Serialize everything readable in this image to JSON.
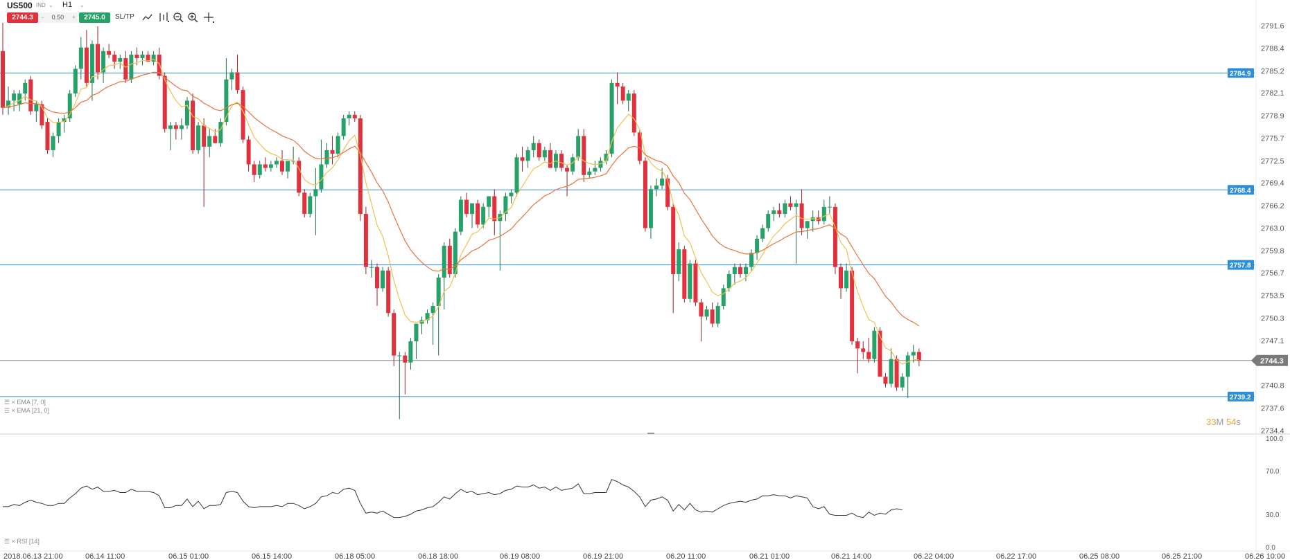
{
  "header": {
    "symbol": "US500",
    "symbol_sub": "IND",
    "timeframe": "H1",
    "sell_price": "2744.3",
    "quantity_prefix": "-",
    "quantity": "0.50",
    "quantity_suffix": "+",
    "buy_price": "2745.0",
    "sltp_label": "SL/TP",
    "tools": [
      "chart-type-icon",
      "indicators-icon",
      "zoom-out-icon",
      "zoom-in-icon",
      "crosshair-icon"
    ]
  },
  "colors": {
    "bull": "#26a269",
    "bear": "#e0313c",
    "ema_fast": "#f2c14e",
    "ema_slow": "#e8733c",
    "level_line": "#2e8fd8",
    "price_line": "#888888",
    "rsi_line": "#333333"
  },
  "indicators": {
    "ema_fast_label": "EMA [7, 0]",
    "ema_slow_label": "EMA [21, 0]",
    "rsi_label": "RSI [14]"
  },
  "timer": {
    "minutes": "33",
    "minutes_unit": "M",
    "seconds": "54",
    "seconds_unit": "s"
  },
  "price_axis": {
    "ticks": [
      "2791.6",
      "2788.4",
      "2785.2",
      "2782.1",
      "2778.9",
      "2775.7",
      "2772.5",
      "2769.4",
      "2766.2",
      "2763.0",
      "2759.8",
      "2756.7",
      "2753.5",
      "2750.3",
      "2747.1",
      "2740.8",
      "2737.6",
      "2734.4"
    ],
    "levels": [
      "2784.9",
      "2768.4",
      "2757.8",
      "2739.2"
    ],
    "current_price": "2744.3"
  },
  "rsi_axis": {
    "ticks": [
      "100.0",
      "70.0",
      "30.0",
      "0.0"
    ]
  },
  "time_axis": {
    "labels": [
      "2018.06.13 21:00",
      "06.14 11:00",
      "06.15 01:00",
      "06.15 14:00",
      "06.18 05:00",
      "06.18 18:00",
      "06.19 08:00",
      "06.19 21:00",
      "06.20 11:00",
      "06.21 01:00",
      "06.21 14:00",
      "06.22 04:00",
      "06.22 17:00",
      "06.25 08:00",
      "06.25 21:00",
      "06.26 10:00"
    ]
  },
  "chart_data": {
    "type": "candlestick",
    "symbol": "US500",
    "timeframe": "H1",
    "ohlc": [
      [
        2788.0,
        2792.0,
        2779.0,
        2780.0
      ],
      [
        2780.0,
        2783.0,
        2779.0,
        2781.0
      ],
      [
        2781.0,
        2782.5,
        2779.5,
        2782.0
      ],
      [
        2780.5,
        2782.5,
        2779.5,
        2782.0
      ],
      [
        2782.0,
        2784.0,
        2781.0,
        2783.5
      ],
      [
        2784.0,
        2784.5,
        2779.0,
        2779.5
      ],
      [
        2779.5,
        2781.0,
        2778.0,
        2780.5
      ],
      [
        2780.5,
        2781.0,
        2777.0,
        2777.5
      ],
      [
        2778.0,
        2778.5,
        2773.5,
        2774.0
      ],
      [
        2774.0,
        2776.5,
        2773.0,
        2776.0
      ],
      [
        2776.0,
        2778.5,
        2775.0,
        2778.0
      ],
      [
        2778.0,
        2779.0,
        2776.5,
        2778.5
      ],
      [
        2778.5,
        2782.5,
        2778.0,
        2782.0
      ],
      [
        2782.0,
        2786.0,
        2781.5,
        2785.5
      ],
      [
        2785.5,
        2790.0,
        2784.0,
        2788.5
      ],
      [
        2788.5,
        2791.0,
        2783.0,
        2783.5
      ],
      [
        2783.5,
        2789.5,
        2781.0,
        2789.0
      ],
      [
        2789.0,
        2791.5,
        2784.0,
        2785.0
      ],
      [
        2785.0,
        2788.5,
        2783.5,
        2788.0
      ],
      [
        2788.0,
        2789.0,
        2787.0,
        2787.5
      ],
      [
        2787.5,
        2788.0,
        2785.5,
        2786.5
      ],
      [
        2786.5,
        2787.5,
        2785.5,
        2787.0
      ],
      [
        2787.0,
        2788.0,
        2783.5,
        2784.0
      ],
      [
        2784.0,
        2788.0,
        2783.5,
        2787.5
      ],
      [
        2787.5,
        2788.5,
        2786.0,
        2787.0
      ],
      [
        2787.0,
        2788.0,
        2786.0,
        2787.5
      ],
      [
        2787.5,
        2788.0,
        2786.5,
        2786.5
      ],
      [
        2786.5,
        2788.0,
        2786.0,
        2787.5
      ],
      [
        2787.5,
        2788.5,
        2784.0,
        2784.5
      ],
      [
        2784.5,
        2785.0,
        2776.5,
        2777.0
      ],
      [
        2777.0,
        2778.0,
        2774.0,
        2777.5
      ],
      [
        2777.5,
        2778.0,
        2775.5,
        2777.0
      ],
      [
        2777.0,
        2778.5,
        2775.5,
        2777.5
      ],
      [
        2777.5,
        2781.5,
        2777.0,
        2781.0
      ],
      [
        2781.0,
        2782.0,
        2773.5,
        2774.0
      ],
      [
        2774.0,
        2778.0,
        2773.5,
        2777.5
      ],
      [
        2777.5,
        2778.5,
        2766.0,
        2774.5
      ],
      [
        2774.5,
        2777.0,
        2773.0,
        2776.0
      ],
      [
        2776.0,
        2777.0,
        2775.0,
        2775.0
      ],
      [
        2775.0,
        2778.5,
        2774.5,
        2778.0
      ],
      [
        2778.0,
        2787.0,
        2777.5,
        2784.0
      ],
      [
        2784.0,
        2785.5,
        2782.5,
        2785.0
      ],
      [
        2785.0,
        2787.5,
        2782.0,
        2782.5
      ],
      [
        2782.5,
        2783.0,
        2775.0,
        2775.5
      ],
      [
        2775.5,
        2776.0,
        2771.0,
        2772.0
      ],
      [
        2772.0,
        2772.5,
        2769.5,
        2770.5
      ],
      [
        2770.5,
        2772.5,
        2770.0,
        2772.0
      ],
      [
        2772.0,
        2773.0,
        2771.0,
        2771.5
      ],
      [
        2771.5,
        2772.5,
        2771.0,
        2772.0
      ],
      [
        2772.0,
        2773.0,
        2771.5,
        2772.5
      ],
      [
        2772.5,
        2774.0,
        2770.5,
        2771.0
      ],
      [
        2771.0,
        2772.5,
        2770.0,
        2772.5
      ],
      [
        2772.5,
        2774.5,
        2772.0,
        2772.5
      ],
      [
        2772.5,
        2773.0,
        2767.5,
        2768.0
      ],
      [
        2768.0,
        2768.5,
        2764.5,
        2765.0
      ],
      [
        2765.0,
        2768.0,
        2764.5,
        2767.5
      ],
      [
        2767.5,
        2771.5,
        2762.0,
        2768.5
      ],
      [
        2768.5,
        2775.5,
        2768.0,
        2772.0
      ],
      [
        2772.0,
        2775.0,
        2771.5,
        2774.0
      ],
      [
        2774.0,
        2776.0,
        2772.0,
        2773.5
      ],
      [
        2773.5,
        2776.5,
        2773.0,
        2776.0
      ],
      [
        2776.0,
        2779.0,
        2775.5,
        2778.5
      ],
      [
        2778.5,
        2779.5,
        2777.5,
        2779.0
      ],
      [
        2779.0,
        2779.5,
        2778.0,
        2778.5
      ],
      [
        2778.5,
        2779.0,
        2764.0,
        2765.0
      ],
      [
        2765.0,
        2766.0,
        2756.5,
        2757.5
      ],
      [
        2757.5,
        2758.5,
        2756.0,
        2757.5
      ],
      [
        2757.5,
        2758.0,
        2752.0,
        2754.5
      ],
      [
        2754.5,
        2757.5,
        2754.0,
        2757.0
      ],
      [
        2757.0,
        2757.5,
        2750.5,
        2751.0
      ],
      [
        2751.0,
        2751.5,
        2743.5,
        2745.0
      ],
      [
        2745.0,
        2745.5,
        2736.0,
        2745.0
      ],
      [
        2745.0,
        2745.5,
        2739.5,
        2744.0
      ],
      [
        2744.0,
        2747.5,
        2743.0,
        2747.0
      ],
      [
        2747.0,
        2749.0,
        2744.5,
        2749.5
      ],
      [
        2749.5,
        2750.5,
        2748.0,
        2750.0
      ],
      [
        2750.0,
        2751.5,
        2749.5,
        2751.0
      ],
      [
        2751.0,
        2752.5,
        2746.5,
        2752.0
      ],
      [
        2752.0,
        2756.5,
        2745.0,
        2756.0
      ],
      [
        2756.0,
        2761.0,
        2751.5,
        2760.5
      ],
      [
        2760.5,
        2761.5,
        2756.0,
        2756.5
      ],
      [
        2756.5,
        2763.0,
        2756.0,
        2762.5
      ],
      [
        2762.5,
        2767.5,
        2762.0,
        2767.0
      ],
      [
        2767.0,
        2768.0,
        2764.5,
        2765.0
      ],
      [
        2765.0,
        2766.5,
        2763.0,
        2766.5
      ],
      [
        2766.5,
        2767.0,
        2763.0,
        2763.5
      ],
      [
        2763.5,
        2766.5,
        2763.0,
        2766.0
      ],
      [
        2766.0,
        2767.5,
        2764.5,
        2767.5
      ],
      [
        2767.5,
        2768.5,
        2762.0,
        2764.0
      ],
      [
        2764.0,
        2765.5,
        2757.0,
        2765.0
      ],
      [
        2765.0,
        2768.0,
        2764.0,
        2767.5
      ],
      [
        2767.5,
        2768.5,
        2766.5,
        2768.0
      ],
      [
        2768.0,
        2773.5,
        2767.5,
        2773.0
      ],
      [
        2773.0,
        2774.5,
        2771.0,
        2772.5
      ],
      [
        2772.5,
        2774.5,
        2771.5,
        2774.0
      ],
      [
        2774.0,
        2776.0,
        2773.0,
        2775.0
      ],
      [
        2775.0,
        2775.5,
        2772.5,
        2773.0
      ],
      [
        2773.0,
        2774.5,
        2772.5,
        2774.0
      ],
      [
        2774.0,
        2775.0,
        2771.5,
        2771.5
      ],
      [
        2771.5,
        2774.0,
        2771.0,
        2773.5
      ],
      [
        2773.5,
        2774.0,
        2771.0,
        2771.5
      ],
      [
        2771.5,
        2772.0,
        2767.5,
        2771.0
      ],
      [
        2771.0,
        2773.5,
        2770.5,
        2773.0
      ],
      [
        2773.0,
        2777.0,
        2772.5,
        2776.0
      ],
      [
        2776.0,
        2777.0,
        2769.5,
        2770.5
      ],
      [
        2770.5,
        2771.5,
        2770.0,
        2771.0
      ],
      [
        2771.0,
        2772.5,
        2770.5,
        2771.5
      ],
      [
        2771.5,
        2773.0,
        2771.0,
        2772.5
      ],
      [
        2772.5,
        2774.0,
        2772.0,
        2773.5
      ],
      [
        2773.5,
        2784.0,
        2773.0,
        2783.5
      ],
      [
        2783.5,
        2785.0,
        2780.5,
        2783.0
      ],
      [
        2783.0,
        2783.5,
        2780.5,
        2781.0
      ],
      [
        2781.0,
        2782.5,
        2779.5,
        2782.0
      ],
      [
        2782.0,
        2782.5,
        2776.0,
        2776.5
      ],
      [
        2776.5,
        2777.0,
        2772.0,
        2772.5
      ],
      [
        2772.5,
        2773.0,
        2762.5,
        2763.0
      ],
      [
        2763.0,
        2769.0,
        2761.5,
        2768.5
      ],
      [
        2768.5,
        2770.0,
        2767.5,
        2769.0
      ],
      [
        2769.0,
        2771.5,
        2768.5,
        2770.0
      ],
      [
        2770.0,
        2770.5,
        2765.5,
        2766.0
      ],
      [
        2766.0,
        2766.5,
        2751.0,
        2756.5
      ],
      [
        2756.5,
        2761.0,
        2755.5,
        2760.0
      ],
      [
        2760.0,
        2760.5,
        2752.5,
        2753.0
      ],
      [
        2753.0,
        2758.5,
        2752.5,
        2758.0
      ],
      [
        2758.0,
        2758.5,
        2752.0,
        2752.5
      ],
      [
        2752.5,
        2753.0,
        2747.0,
        2750.5
      ],
      [
        2750.5,
        2752.0,
        2750.0,
        2751.5
      ],
      [
        2751.5,
        2752.5,
        2749.0,
        2749.5
      ],
      [
        2749.5,
        2752.5,
        2749.0,
        2752.0
      ],
      [
        2752.0,
        2755.0,
        2751.5,
        2754.5
      ],
      [
        2754.5,
        2757.0,
        2754.0,
        2756.5
      ],
      [
        2756.5,
        2758.0,
        2755.0,
        2757.5
      ],
      [
        2757.5,
        2758.0,
        2756.0,
        2756.5
      ],
      [
        2756.5,
        2758.0,
        2755.5,
        2757.5
      ],
      [
        2757.5,
        2760.0,
        2757.0,
        2759.5
      ],
      [
        2759.5,
        2762.0,
        2758.5,
        2761.5
      ],
      [
        2761.5,
        2763.5,
        2761.0,
        2763.0
      ],
      [
        2763.0,
        2765.5,
        2762.5,
        2765.0
      ],
      [
        2765.0,
        2766.0,
        2764.0,
        2765.5
      ],
      [
        2765.5,
        2766.5,
        2764.5,
        2765.0
      ],
      [
        2765.0,
        2767.0,
        2764.5,
        2766.5
      ],
      [
        2766.5,
        2767.5,
        2765.5,
        2766.0
      ],
      [
        2766.0,
        2767.0,
        2758.0,
        2766.5
      ],
      [
        2766.5,
        2768.5,
        2762.0,
        2763.0
      ],
      [
        2763.0,
        2764.0,
        2761.5,
        2764.0
      ],
      [
        2764.0,
        2765.5,
        2762.5,
        2764.5
      ],
      [
        2764.5,
        2765.5,
        2763.5,
        2764.0
      ],
      [
        2764.0,
        2767.0,
        2763.5,
        2766.0
      ],
      [
        2766.0,
        2767.5,
        2765.0,
        2766.0
      ],
      [
        2766.0,
        2766.5,
        2756.5,
        2757.5
      ],
      [
        2757.5,
        2758.0,
        2753.0,
        2754.5
      ],
      [
        2754.5,
        2758.0,
        2754.0,
        2757.0
      ],
      [
        2757.0,
        2757.5,
        2746.5,
        2747.0
      ],
      [
        2747.0,
        2747.5,
        2742.5,
        2746.0
      ],
      [
        2746.0,
        2747.0,
        2744.5,
        2745.5
      ],
      [
        2745.5,
        2747.5,
        2744.0,
        2744.5
      ],
      [
        2744.5,
        2749.0,
        2744.0,
        2748.5
      ],
      [
        2748.5,
        2749.0,
        2742.5,
        2742.0
      ],
      [
        2742.0,
        2742.5,
        2740.5,
        2741.0
      ],
      [
        2741.0,
        2746.0,
        2740.5,
        2744.5
      ],
      [
        2744.5,
        2745.0,
        2740.0,
        2740.5
      ],
      [
        2740.5,
        2742.5,
        2740.0,
        2742.0
      ],
      [
        2742.0,
        2745.5,
        2739.0,
        2745.0
      ],
      [
        2745.0,
        2746.5,
        2744.0,
        2745.5
      ],
      [
        2745.5,
        2746.0,
        2743.5,
        2744.3
      ]
    ],
    "ema_fast_period": 7,
    "ema_slow_period": 21,
    "rsi_period": 14,
    "rsi_values": [
      37,
      37,
      39,
      38,
      41,
      43,
      41,
      40,
      38,
      38,
      40,
      40,
      45,
      49,
      54,
      56,
      53,
      55,
      51,
      51,
      52,
      50,
      50,
      53,
      51,
      51,
      51,
      50,
      47,
      36,
      36,
      38,
      38,
      44,
      37,
      42,
      35,
      38,
      38,
      39,
      50,
      51,
      50,
      42,
      37,
      36,
      37,
      37,
      37,
      38,
      37,
      40,
      40,
      38,
      35,
      37,
      40,
      46,
      47,
      50,
      49,
      53,
      54,
      52,
      40,
      31,
      32,
      31,
      33,
      30,
      27,
      27,
      28,
      30,
      33,
      34,
      36,
      37,
      41,
      46,
      44,
      49,
      53,
      50,
      51,
      48,
      49,
      50,
      48,
      49,
      52,
      53,
      56,
      55,
      55,
      57,
      54,
      55,
      52,
      55,
      52,
      53,
      54,
      58,
      49,
      49,
      50,
      50,
      50,
      62,
      60,
      57,
      55,
      51,
      46,
      37,
      43,
      44,
      46,
      43,
      33,
      39,
      34,
      40,
      34,
      32,
      33,
      32,
      35,
      38,
      40,
      41,
      42,
      41,
      43,
      44,
      47,
      47,
      48,
      47,
      47,
      45,
      47,
      46,
      45,
      37,
      35,
      37,
      30,
      29,
      29,
      29,
      31,
      28,
      27,
      32,
      29,
      31,
      30,
      34,
      35,
      34
    ]
  }
}
